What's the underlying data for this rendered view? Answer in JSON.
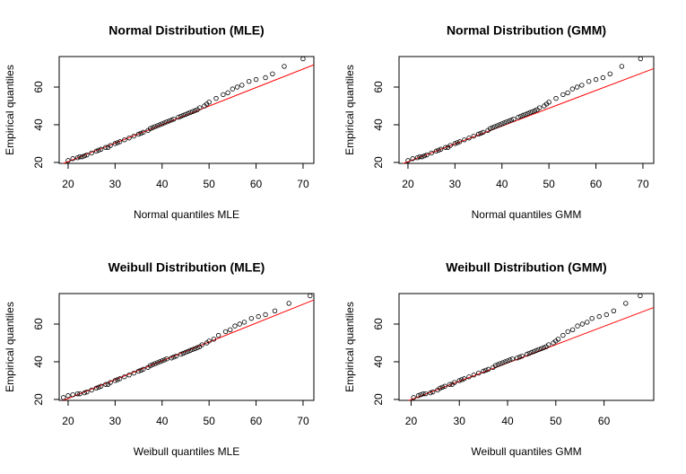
{
  "chart_data": [
    {
      "type": "scatter",
      "title": "Normal Distribution (MLE)",
      "x_label": "Normal quantiles MLE",
      "y_label": "Empirical quantiles",
      "x": [
        20,
        21,
        22,
        22.5,
        23,
        23.5,
        24,
        25,
        26,
        26.5,
        27,
        28,
        28.5,
        29,
        30,
        30.5,
        31,
        32,
        33,
        34,
        35,
        35.5,
        36,
        37,
        37.5,
        38,
        38.5,
        39,
        39.5,
        40,
        40.5,
        41,
        41.5,
        42,
        42.5,
        43.5,
        44,
        44.5,
        45,
        45.5,
        46,
        46.5,
        47,
        47.5,
        48,
        49,
        49.5,
        50,
        51.5,
        53,
        54,
        55,
        56,
        57,
        58.5,
        60,
        62,
        63.5,
        66,
        70
      ],
      "y": [
        21,
        22,
        22.5,
        23,
        23,
        23.5,
        24,
        25,
        26,
        26.5,
        27,
        28,
        28,
        29,
        30,
        30.5,
        31,
        32,
        33,
        34,
        35,
        35.5,
        36,
        37,
        38,
        38.5,
        39,
        39.5,
        40,
        40.5,
        41,
        41.5,
        42,
        42.5,
        43,
        44,
        44.5,
        45,
        45.5,
        46,
        46.5,
        47,
        47.5,
        48,
        49,
        50,
        51,
        52,
        54,
        56,
        57,
        59,
        60,
        61,
        63,
        64,
        65,
        67,
        71,
        75
      ],
      "line": {
        "x": [
          18,
          73
        ],
        "y": [
          18.5,
          72.5
        ],
        "color": "#ff0000"
      },
      "point_color": "#000000",
      "xlim": [
        18.1,
        72.3
      ],
      "ylim": [
        19.5,
        76.2
      ],
      "xticks": [
        20,
        30,
        40,
        50,
        60,
        70
      ],
      "yticks": [
        20,
        40,
        60
      ]
    },
    {
      "type": "scatter",
      "title": "Normal Distribution (GMM)",
      "x_label": "Normal quantiles GMM",
      "y_label": "Empirical quantiles",
      "x": [
        20,
        21,
        22,
        22.5,
        23,
        23.5,
        24,
        25,
        26,
        26.5,
        27,
        28,
        28.5,
        29,
        30,
        30.5,
        31,
        32,
        33,
        34,
        35,
        35.5,
        36,
        37,
        37.5,
        38,
        38.5,
        39,
        39.5,
        40,
        40.5,
        41,
        41.5,
        42,
        42.5,
        43.5,
        44,
        44.5,
        45,
        45.5,
        46,
        46.5,
        47,
        47.5,
        48,
        49,
        49.5,
        50,
        51.5,
        53,
        54,
        55,
        56,
        57,
        58.5,
        60,
        61.5,
        63,
        65.5,
        69.5
      ],
      "y": [
        21,
        22,
        22.5,
        23,
        23,
        23.5,
        24,
        25,
        26,
        26.5,
        27,
        28,
        28,
        29,
        30,
        30.5,
        31,
        32,
        33,
        34,
        35,
        35.5,
        36,
        37,
        38,
        38.5,
        39,
        39.5,
        40,
        40.5,
        41,
        41.5,
        42,
        42.5,
        43,
        44,
        44.5,
        45,
        45.5,
        46,
        46.5,
        47,
        47.5,
        48,
        49,
        50,
        51,
        52,
        54,
        56,
        57,
        59,
        60,
        61,
        63,
        64,
        65,
        67,
        71,
        75
      ],
      "line": {
        "x": [
          18,
          73
        ],
        "y": [
          18.5,
          70.5
        ],
        "color": "#ff0000"
      },
      "point_color": "#000000",
      "xlim": [
        18.1,
        72.3
      ],
      "ylim": [
        19.5,
        76.2
      ],
      "xticks": [
        20,
        30,
        40,
        50,
        60,
        70
      ],
      "yticks": [
        20,
        40,
        60
      ]
    },
    {
      "type": "scatter",
      "title": "Weibull Distribution (MLE)",
      "x_label": "Weibull quantiles MLE",
      "y_label": "Empirical quantiles",
      "x": [
        19,
        20,
        21,
        22,
        22.5,
        23.5,
        24,
        25,
        26,
        26.5,
        27,
        28,
        28.5,
        29,
        30,
        30.5,
        31,
        32,
        33,
        34,
        35,
        35.5,
        36,
        37,
        37.5,
        38,
        38.5,
        39,
        39.5,
        40,
        40.5,
        41,
        42,
        42.5,
        43,
        44,
        44.5,
        45,
        45.5,
        46,
        46.5,
        47,
        47.5,
        48,
        48.5,
        49.5,
        50,
        51,
        52,
        53.5,
        54.5,
        55.5,
        56.5,
        57.5,
        59,
        60.5,
        62,
        64,
        67,
        71.5
      ],
      "y": [
        21,
        22,
        22.5,
        23,
        23,
        23.5,
        24,
        25,
        26,
        26.5,
        27,
        28,
        28,
        29,
        30,
        30.5,
        31,
        32,
        33,
        34,
        35,
        35.5,
        36,
        37,
        38,
        38.5,
        39,
        39.5,
        40,
        40.5,
        41,
        41.5,
        42,
        42.5,
        43,
        44,
        44.5,
        45,
        45.5,
        46,
        46.5,
        47,
        47.5,
        48,
        49,
        50,
        51,
        52,
        54,
        56,
        57,
        59,
        60,
        61,
        63,
        64,
        65,
        67,
        71,
        75
      ],
      "line": {
        "x": [
          18,
          73
        ],
        "y": [
          18.5,
          73.5
        ],
        "color": "#ff0000"
      },
      "point_color": "#000000",
      "xlim": [
        18.1,
        72.3
      ],
      "ylim": [
        19.5,
        76.2
      ],
      "xticks": [
        20,
        30,
        40,
        50,
        60,
        70
      ],
      "yticks": [
        20,
        40,
        60
      ]
    },
    {
      "type": "scatter",
      "title": "Weibull Distribution (GMM)",
      "x_label": "Weibull quantiles GMM",
      "y_label": "Empirical quantiles",
      "x": [
        20.5,
        21.5,
        22,
        22.5,
        23,
        24,
        24.5,
        25.5,
        26,
        26.5,
        27,
        28,
        28.5,
        29,
        30,
        30.5,
        31,
        32,
        33,
        34,
        35,
        35.5,
        36,
        37,
        37.5,
        38,
        38.5,
        39,
        39.5,
        40,
        40.5,
        41,
        42,
        42.5,
        43,
        44,
        44.5,
        45,
        45.5,
        46,
        46.5,
        47,
        47.5,
        48,
        48.5,
        49.5,
        50,
        50.5,
        51.5,
        52.5,
        53.5,
        54.5,
        55.5,
        56.5,
        57.5,
        59,
        60.5,
        62,
        64.5,
        67.5
      ],
      "y": [
        21,
        22,
        22.5,
        23,
        23,
        23.5,
        24,
        25,
        26,
        26.5,
        27,
        28,
        28,
        29,
        30,
        30.5,
        31,
        32,
        33,
        34,
        35,
        35.5,
        36,
        37,
        38,
        38.5,
        39,
        39.5,
        40,
        40.5,
        41,
        41.5,
        42,
        42.5,
        43,
        44,
        44.5,
        45,
        45.5,
        46,
        46.5,
        47,
        47.5,
        48,
        49,
        50,
        51,
        52,
        54,
        56,
        57,
        59,
        60,
        61,
        63,
        64,
        65,
        67,
        71,
        75
      ],
      "line": {
        "x": [
          17,
          71
        ],
        "y": [
          17,
          69.5
        ],
        "color": "#ff0000"
      },
      "point_color": "#000000",
      "xlim": [
        17.5,
        70.3
      ],
      "ylim": [
        19.5,
        76.2
      ],
      "xticks": [
        20,
        30,
        40,
        50,
        60
      ],
      "yticks": [
        20,
        40,
        60
      ]
    }
  ]
}
